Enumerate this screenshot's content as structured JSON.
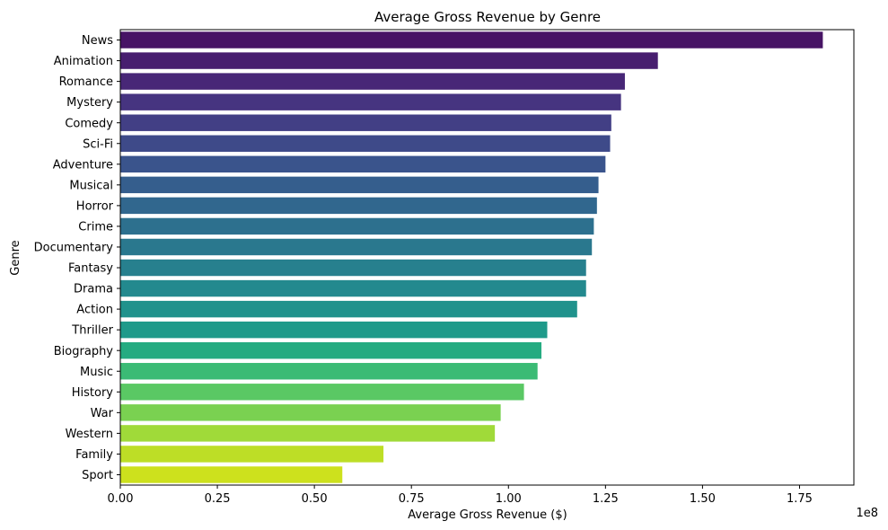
{
  "chart_data": {
    "type": "bar",
    "orientation": "horizontal",
    "title": "Average Gross Revenue by Genre",
    "xlabel": "Average Gross Revenue ($)",
    "ylabel": "Genre",
    "x_offset_label": "1e8",
    "xlim": [
      0,
      1.89
    ],
    "xticks": [
      0.0,
      0.25,
      0.5,
      0.75,
      1.0,
      1.25,
      1.5,
      1.75
    ],
    "xtick_labels": [
      "0.00",
      "0.25",
      "0.50",
      "0.75",
      "1.00",
      "1.25",
      "1.50",
      "1.75"
    ],
    "grid": false,
    "categories": [
      "News",
      "Animation",
      "Romance",
      "Mystery",
      "Comedy",
      "Sci-Fi",
      "Adventure",
      "Musical",
      "Horror",
      "Crime",
      "Documentary",
      "Fantasy",
      "Drama",
      "Action",
      "Thriller",
      "Biography",
      "Music",
      "History",
      "War",
      "Western",
      "Family",
      "Sport"
    ],
    "values": [
      1.81,
      1.385,
      1.3,
      1.29,
      1.265,
      1.262,
      1.25,
      1.232,
      1.228,
      1.22,
      1.215,
      1.2,
      1.2,
      1.177,
      1.1,
      1.085,
      1.075,
      1.04,
      0.98,
      0.965,
      0.678,
      0.572
    ],
    "colors": [
      "#471465",
      "#481e6f",
      "#482777",
      "#463480",
      "#423f85",
      "#3e4a89",
      "#3a548c",
      "#355e8d",
      "#31678e",
      "#2d708e",
      "#2a788e",
      "#27808e",
      "#23898e",
      "#20928c",
      "#1f9a8a",
      "#25ab81",
      "#3bbb75",
      "#5ac864",
      "#7ad151",
      "#a0da39",
      "#bdde26",
      "#cde11d"
    ]
  }
}
